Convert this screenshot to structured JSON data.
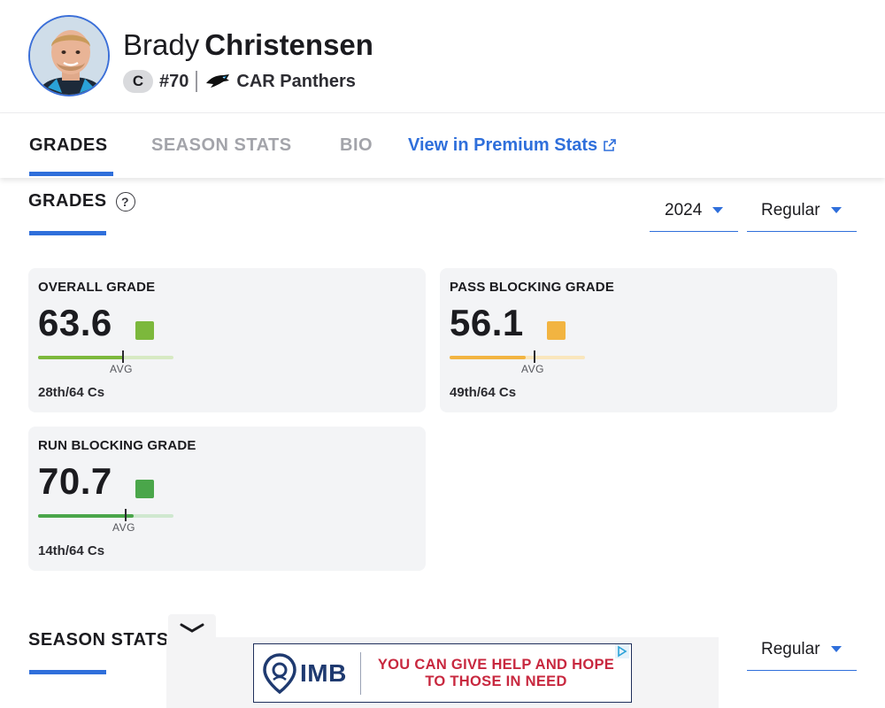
{
  "player": {
    "first_name": "Brady",
    "last_name": "Christensen",
    "position": "C",
    "jersey": "#70",
    "team": "CAR Panthers"
  },
  "tabs": [
    {
      "label": "GRADES",
      "active": true
    },
    {
      "label": "SEASON STATS",
      "active": false
    },
    {
      "label": "BIO",
      "active": false
    },
    {
      "label": "View in Premium Stats",
      "active": false
    }
  ],
  "grades_section": {
    "title": "GRADES",
    "help_icon": "question-circle-icon",
    "year": "2024",
    "season_type": "Regular"
  },
  "grade_cards": [
    {
      "title": "OVERALL GRADE",
      "value": "63.6",
      "rank": "28th/64 Cs",
      "avg_label": "AVG",
      "color": "#7cb83c",
      "track_color": "#d7eac3",
      "fill": 0.636,
      "avg": 0.62
    },
    {
      "title": "PASS BLOCKING GRADE",
      "value": "56.1",
      "rank": "49th/64 Cs",
      "avg_label": "AVG",
      "color": "#f2b441",
      "track_color": "#f9e6bd",
      "fill": 0.561,
      "avg": 0.62
    },
    {
      "title": "RUN BLOCKING GRADE",
      "value": "70.7",
      "rank": "14th/64 Cs",
      "avg_label": "AVG",
      "color": "#4aa64a",
      "track_color": "#cfe8cf",
      "fill": 0.707,
      "avg": 0.64
    }
  ],
  "season_stats_section": {
    "title": "SEASON STATS",
    "season_type": "Regular"
  },
  "ad": {
    "logo_text": "IMB",
    "message_line1": "YOU CAN GIVE HELP AND HOPE",
    "message_line2": "TO THOSE IN NEED"
  },
  "colors": {
    "accent": "#2f6fdb",
    "card_bg": "#f3f4f6",
    "ad_text": "#c8283f"
  }
}
